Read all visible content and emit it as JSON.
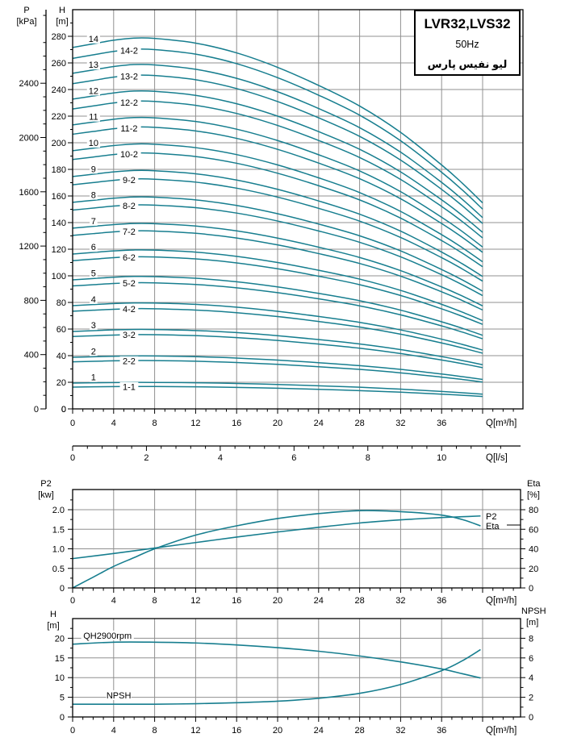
{
  "title_box": {
    "model": "LVR32,LVS32",
    "frequency": "50Hz",
    "brand": "ليو نفيس پارس"
  },
  "colors": {
    "curve": "#177E8F",
    "grid": "#909090",
    "axis": "#000000",
    "background": "#ffffff"
  },
  "chart_data": [
    {
      "id": "main-qh-curves",
      "type": "line",
      "x_axis": {
        "label": "Q[m³/h]",
        "ticks": [
          0,
          4,
          8,
          12,
          16,
          20,
          24,
          28,
          32,
          36
        ],
        "major_step": 4,
        "minor_step": 1,
        "grid_max": 40,
        "xmax": 43.9
      },
      "x_axis_secondary": {
        "label": "Q[l/s]",
        "ticks": [
          0,
          2,
          4,
          6,
          8,
          10
        ],
        "minor_step": 0.4,
        "m3h_per_ls": 3.6
      },
      "y_axis_h": {
        "title": "H",
        "unit": "[m]",
        "ticks": [
          0,
          20,
          40,
          60,
          80,
          100,
          120,
          140,
          160,
          180,
          200,
          220,
          240,
          260,
          280
        ],
        "minor_step": 10,
        "ymax": 300
      },
      "y_axis_p": {
        "title": "P",
        "unit": "[kPa]",
        "ticks": [
          0,
          400,
          800,
          1200,
          1600,
          2000,
          2400
        ],
        "minor_step": 100,
        "kpa_per_m": 9.807
      },
      "curve_shape": {
        "q": [
          0,
          2,
          4,
          6,
          8,
          12,
          16,
          20,
          24,
          28,
          32,
          36,
          38,
          40
        ],
        "s": [
          1.0,
          1.01,
          1.02,
          1.026,
          1.025,
          1.012,
          0.985,
          0.945,
          0.895,
          0.838,
          0.765,
          0.675,
          0.625,
          0.57
        ],
        "q_end": 40
      },
      "label_q_main": 1.8,
      "label_q_sub": 4.8,
      "curves": [
        {
          "label": "14",
          "h0": 271.6,
          "kind": "main"
        },
        {
          "label": "14-2",
          "h0": 263.4,
          "kind": "sub"
        },
        {
          "label": "13",
          "h0": 252.2,
          "kind": "main"
        },
        {
          "label": "13-2",
          "h0": 244.4,
          "kind": "sub"
        },
        {
          "label": "12",
          "h0": 232.8,
          "kind": "main"
        },
        {
          "label": "12-2",
          "h0": 225.4,
          "kind": "sub"
        },
        {
          "label": "11",
          "h0": 213.4,
          "kind": "main"
        },
        {
          "label": "11-2",
          "h0": 206.4,
          "kind": "sub"
        },
        {
          "label": "10",
          "h0": 194.0,
          "kind": "main"
        },
        {
          "label": "10-2",
          "h0": 187.4,
          "kind": "sub"
        },
        {
          "label": "9",
          "h0": 174.6,
          "kind": "main"
        },
        {
          "label": "9-2",
          "h0": 168.4,
          "kind": "sub"
        },
        {
          "label": "8",
          "h0": 155.2,
          "kind": "main"
        },
        {
          "label": "8-2",
          "h0": 149.4,
          "kind": "sub"
        },
        {
          "label": "7",
          "h0": 135.8,
          "kind": "main"
        },
        {
          "label": "7-2",
          "h0": 130.4,
          "kind": "sub"
        },
        {
          "label": "6",
          "h0": 116.4,
          "kind": "main"
        },
        {
          "label": "6-2",
          "h0": 111.4,
          "kind": "sub"
        },
        {
          "label": "5",
          "h0": 97.0,
          "kind": "main"
        },
        {
          "label": "5-2",
          "h0": 92.4,
          "kind": "sub"
        },
        {
          "label": "4",
          "h0": 77.6,
          "kind": "main"
        },
        {
          "label": "4-2",
          "h0": 73.4,
          "kind": "sub"
        },
        {
          "label": "3",
          "h0": 58.2,
          "kind": "main"
        },
        {
          "label": "3-2",
          "h0": 54.4,
          "kind": "sub"
        },
        {
          "label": "2",
          "h0": 38.8,
          "kind": "main"
        },
        {
          "label": "2-2",
          "h0": 35.4,
          "kind": "sub"
        },
        {
          "label": "1",
          "h0": 19.4,
          "kind": "main"
        },
        {
          "label": "1-1",
          "h0": 16.4,
          "kind": "sub"
        }
      ]
    },
    {
      "id": "power-efficiency",
      "type": "line",
      "x_axis": {
        "label": "Q[m³/h]",
        "ticks": [
          0,
          4,
          8,
          12,
          16,
          20,
          24,
          28,
          32,
          36
        ],
        "major_step": 4,
        "minor_step": 1,
        "grid_max": 40,
        "xmax": 43.7
      },
      "y_axis_p2": {
        "title": "P2",
        "unit": "[kw]",
        "ticks": [
          "0",
          "0.5",
          "1.0",
          "1.5",
          "2.0"
        ],
        "tick_values": [
          0,
          0.5,
          1.0,
          1.5,
          2.0
        ],
        "minor_step": 0.25,
        "ymax": 2.52
      },
      "y_axis_eta": {
        "title": "Eta",
        "unit": "[%]",
        "ticks": [
          0,
          20,
          40,
          60,
          80
        ],
        "minor_step": 10
      },
      "series": [
        {
          "name": "P2",
          "axis": "p2",
          "end_label": "P2",
          "leader": false,
          "x": [
            0,
            4,
            8,
            12,
            16,
            20,
            24,
            28,
            32,
            36,
            38,
            39.8
          ],
          "y": [
            0.75,
            0.88,
            1.02,
            1.16,
            1.3,
            1.43,
            1.55,
            1.66,
            1.74,
            1.8,
            1.82,
            1.84
          ]
        },
        {
          "name": "Eta",
          "axis": "eta",
          "end_label": "Eta",
          "leader": true,
          "x": [
            0,
            2,
            4,
            6,
            8,
            12,
            16,
            20,
            24,
            28,
            32,
            36,
            38,
            39.8
          ],
          "y": [
            0,
            11,
            22,
            31,
            40,
            54,
            63.5,
            71,
            76,
            79,
            78,
            74.5,
            70,
            63.5
          ]
        }
      ]
    },
    {
      "id": "qh-npsh",
      "type": "line",
      "x_axis": {
        "label": "Q[m³/h]",
        "ticks": [
          0,
          4,
          8,
          12,
          16,
          20,
          24,
          28,
          32,
          36
        ],
        "major_step": 4,
        "minor_step": 1,
        "grid_max": 40,
        "xmax": 43.7
      },
      "y_axis_h": {
        "title": "H",
        "unit": "[m]",
        "ticks": [
          0,
          5,
          10,
          15,
          20
        ],
        "minor_step": 2.5,
        "ymax": 25
      },
      "y_axis_npsh": {
        "title": "NPSH",
        "unit": "[m]",
        "ticks": [
          0,
          2,
          4,
          6,
          8
        ],
        "minor_step": 1
      },
      "series": [
        {
          "name": "QH2900rpm",
          "axis": "h",
          "label_text": "QH2900rpm",
          "label_q": 3.4,
          "label_val": 19.9,
          "x": [
            0,
            4,
            8,
            12,
            16,
            20,
            24,
            28,
            32,
            36,
            38,
            39.8
          ],
          "y": [
            18.5,
            19.0,
            19.0,
            18.8,
            18.3,
            17.6,
            16.7,
            15.5,
            14.0,
            12.2,
            11.0,
            9.9
          ]
        },
        {
          "name": "NPSH",
          "axis": "npsh",
          "label_text": "NPSH",
          "label_q": 4.5,
          "label_val": 1.89,
          "x": [
            0,
            4,
            8,
            12,
            16,
            20,
            24,
            28,
            32,
            36,
            38,
            39.8
          ],
          "y": [
            1.3,
            1.3,
            1.3,
            1.35,
            1.45,
            1.6,
            1.9,
            2.4,
            3.3,
            4.7,
            5.7,
            6.85
          ]
        }
      ]
    }
  ]
}
